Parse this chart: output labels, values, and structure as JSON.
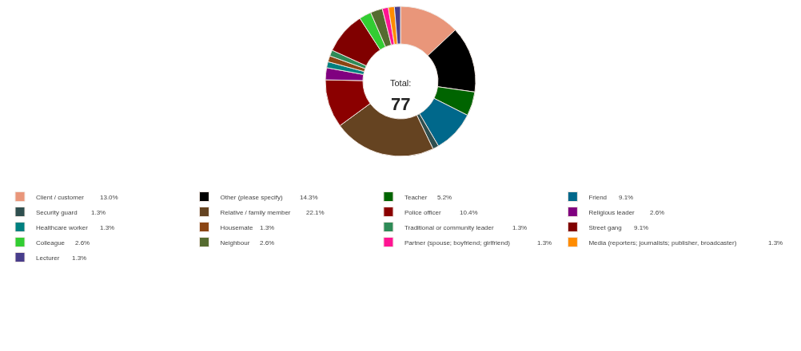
{
  "chart_data": {
    "type": "donut",
    "categories": [
      "Client / customer",
      "Other (please specify)",
      "Teacher",
      "Friend",
      "Security guard",
      "Relative / family member",
      "Police officer",
      "Religious leader",
      "Healthcare worker",
      "Housemate",
      "Traditional or community leader",
      "Street gang",
      "Colleague",
      "Neighbour",
      "Partner (spouse; boyfriend; girlfriend)",
      "Media (reporters; journalists; publisher, broadcaster)",
      "Lecturer"
    ],
    "values": [
      13.0,
      14.3,
      5.2,
      9.1,
      1.3,
      22.1,
      10.4,
      2.6,
      1.3,
      1.3,
      1.3,
      9.1,
      2.6,
      2.6,
      1.3,
      1.3,
      1.3
    ],
    "value_labels": [
      "13.0%",
      "14.3%",
      "5.2%",
      "9.1%",
      "1.3%",
      "22.1%",
      "10.4%",
      "2.6%",
      "1.3%",
      "1.3%",
      "1.3%",
      "9.1%",
      "2.6%",
      "2.6%",
      "1.3%",
      "1.3%",
      "1.3%"
    ],
    "colors": [
      "#e9967a",
      "#000000",
      "#006400",
      "#00688b",
      "#2f4f4f",
      "#654321",
      "#8b0000",
      "#800080",
      "#008080",
      "#8b4513",
      "#2e8b57",
      "#800000",
      "#32cd32",
      "#556b2f",
      "#ff1493",
      "#ff8c00",
      "#483d8b"
    ],
    "annotations": [
      "Total:",
      "77"
    ],
    "legend": "bottom"
  }
}
